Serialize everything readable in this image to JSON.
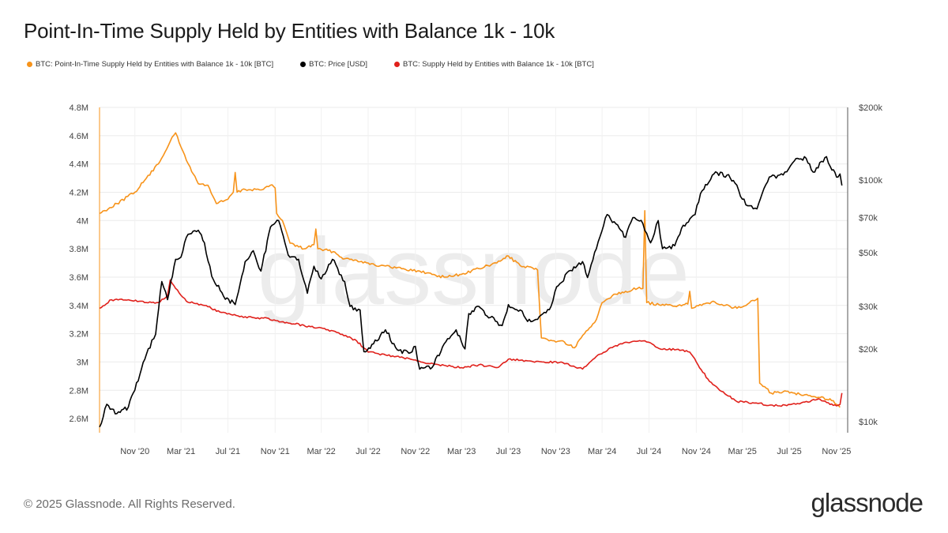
{
  "header": {
    "title": "Point-In-Time Supply Held by Entities with Balance 1k - 10k"
  },
  "footer": {
    "copyright": "© 2025 Glassnode. All Rights Reserved.",
    "brand": "glassnode"
  },
  "watermark": "glassnode",
  "chart_data": {
    "type": "line",
    "title": "Point-In-Time Supply Held by Entities with Balance 1k - 10k",
    "x_range": [
      "2020-08-01",
      "2025-11-30"
    ],
    "x_ticks": [
      {
        "date": "2020-11-01",
        "label": "Nov '20"
      },
      {
        "date": "2021-03-01",
        "label": "Mar '21"
      },
      {
        "date": "2021-07-01",
        "label": "Jul '21"
      },
      {
        "date": "2021-11-01",
        "label": "Nov '21"
      },
      {
        "date": "2022-03-01",
        "label": "Mar '22"
      },
      {
        "date": "2022-07-01",
        "label": "Jul '22"
      },
      {
        "date": "2022-11-01",
        "label": "Nov '22"
      },
      {
        "date": "2023-03-01",
        "label": "Mar '23"
      },
      {
        "date": "2023-07-01",
        "label": "Jul '23"
      },
      {
        "date": "2023-11-01",
        "label": "Nov '23"
      },
      {
        "date": "2024-03-01",
        "label": "Mar '24"
      },
      {
        "date": "2024-07-01",
        "label": "Jul '24"
      },
      {
        "date": "2024-11-01",
        "label": "Nov '24"
      },
      {
        "date": "2025-03-01",
        "label": "Mar '25"
      },
      {
        "date": "2025-07-01",
        "label": "Jul '25"
      },
      {
        "date": "2025-11-01",
        "label": "Nov '25"
      }
    ],
    "y_left": {
      "min": 2500000,
      "max": 4800000,
      "ticks": [
        {
          "value": 2600000,
          "label": "2.6M"
        },
        {
          "value": 2800000,
          "label": "2.8M"
        },
        {
          "value": 3000000,
          "label": "3M"
        },
        {
          "value": 3200000,
          "label": "3.2M"
        },
        {
          "value": 3400000,
          "label": "3.4M"
        },
        {
          "value": 3600000,
          "label": "3.6M"
        },
        {
          "value": 3800000,
          "label": "3.8M"
        },
        {
          "value": 4000000,
          "label": "4M"
        },
        {
          "value": 4200000,
          "label": "4.2M"
        },
        {
          "value": 4400000,
          "label": "4.4M"
        },
        {
          "value": 4600000,
          "label": "4.6M"
        },
        {
          "value": 4800000,
          "label": "4.8M"
        }
      ]
    },
    "y_right": {
      "scale": "log",
      "min": 9000,
      "max": 200000,
      "ticks": [
        {
          "value": 10000,
          "label": "$10k"
        },
        {
          "value": 20000,
          "label": "$20k"
        },
        {
          "value": 30000,
          "label": "$30k"
        },
        {
          "value": 50000,
          "label": "$50k"
        },
        {
          "value": 70000,
          "label": "$70k"
        },
        {
          "value": 100000,
          "label": "$100k"
        },
        {
          "value": 200000,
          "label": "$200k"
        }
      ]
    },
    "grid": true,
    "legend_position": "top-left",
    "series": [
      {
        "name": "BTC: Point-In-Time Supply Held by Entities with Balance 1k - 10k [BTC]",
        "color": "#f7931a",
        "axis": "left",
        "points": [
          [
            "2020-08-01",
            4050000
          ],
          [
            "2020-09-15",
            4120000
          ],
          [
            "2020-11-01",
            4200000
          ],
          [
            "2020-12-01",
            4300000
          ],
          [
            "2021-01-01",
            4400000
          ],
          [
            "2021-02-01",
            4560000
          ],
          [
            "2021-02-15",
            4620000
          ],
          [
            "2021-03-01",
            4520000
          ],
          [
            "2021-03-20",
            4400000
          ],
          [
            "2021-04-15",
            4260000
          ],
          [
            "2021-05-10",
            4250000
          ],
          [
            "2021-06-01",
            4120000
          ],
          [
            "2021-07-01",
            4150000
          ],
          [
            "2021-07-15",
            4200000
          ],
          [
            "2021-07-20",
            4340000
          ],
          [
            "2021-07-25",
            4200000
          ],
          [
            "2021-08-15",
            4220000
          ],
          [
            "2021-10-01",
            4220000
          ],
          [
            "2021-10-20",
            4250000
          ],
          [
            "2021-11-01",
            4230000
          ],
          [
            "2021-11-05",
            4050000
          ],
          [
            "2021-11-20",
            4000000
          ],
          [
            "2021-12-10",
            3840000
          ],
          [
            "2022-01-15",
            3800000
          ],
          [
            "2022-02-10",
            3830000
          ],
          [
            "2022-02-15",
            3940000
          ],
          [
            "2022-02-20",
            3800000
          ],
          [
            "2022-04-01",
            3780000
          ],
          [
            "2022-05-01",
            3730000
          ],
          [
            "2022-06-01",
            3720000
          ],
          [
            "2022-07-01",
            3700000
          ],
          [
            "2022-08-01",
            3680000
          ],
          [
            "2022-10-01",
            3660000
          ],
          [
            "2022-12-01",
            3630000
          ],
          [
            "2023-01-15",
            3600000
          ],
          [
            "2023-03-01",
            3620000
          ],
          [
            "2023-04-15",
            3660000
          ],
          [
            "2023-06-01",
            3700000
          ],
          [
            "2023-07-01",
            3750000
          ],
          [
            "2023-08-01",
            3680000
          ],
          [
            "2023-09-15",
            3650000
          ],
          [
            "2023-09-25",
            3170000
          ],
          [
            "2023-10-15",
            3150000
          ],
          [
            "2023-11-15",
            3150000
          ],
          [
            "2023-12-20",
            3100000
          ],
          [
            "2024-01-15",
            3200000
          ],
          [
            "2024-02-15",
            3300000
          ],
          [
            "2024-03-01",
            3420000
          ],
          [
            "2024-04-01",
            3480000
          ],
          [
            "2024-05-01",
            3500000
          ],
          [
            "2024-06-01",
            3520000
          ],
          [
            "2024-06-15",
            3520000
          ],
          [
            "2024-06-20",
            4070000
          ],
          [
            "2024-06-25",
            3420000
          ],
          [
            "2024-08-01",
            3400000
          ],
          [
            "2024-09-15",
            3400000
          ],
          [
            "2024-10-10",
            3410000
          ],
          [
            "2024-10-15",
            3500000
          ],
          [
            "2024-10-20",
            3380000
          ],
          [
            "2024-11-15",
            3400000
          ],
          [
            "2024-12-15",
            3430000
          ],
          [
            "2025-01-15",
            3400000
          ],
          [
            "2025-02-15",
            3380000
          ],
          [
            "2025-03-15",
            3410000
          ],
          [
            "2025-04-10",
            3450000
          ],
          [
            "2025-04-15",
            2850000
          ],
          [
            "2025-05-15",
            2780000
          ],
          [
            "2025-06-15",
            2790000
          ],
          [
            "2025-07-15",
            2780000
          ],
          [
            "2025-08-15",
            2770000
          ],
          [
            "2025-09-15",
            2750000
          ],
          [
            "2025-10-15",
            2740000
          ],
          [
            "2025-11-01",
            2700000
          ],
          [
            "2025-11-10",
            2680000
          ]
        ]
      },
      {
        "name": "BTC: Price [USD]",
        "color": "#000000",
        "axis": "right",
        "points": [
          [
            "2020-08-01",
            9500
          ],
          [
            "2020-08-20",
            11800
          ],
          [
            "2020-09-15",
            10800
          ],
          [
            "2020-10-15",
            11500
          ],
          [
            "2020-11-01",
            13500
          ],
          [
            "2020-12-01",
            19000
          ],
          [
            "2020-12-25",
            23000
          ],
          [
            "2021-01-10",
            38000
          ],
          [
            "2021-01-25",
            32000
          ],
          [
            "2021-02-15",
            47000
          ],
          [
            "2021-03-01",
            48000
          ],
          [
            "2021-03-15",
            58000
          ],
          [
            "2021-04-15",
            62000
          ],
          [
            "2021-05-01",
            55000
          ],
          [
            "2021-05-20",
            40000
          ],
          [
            "2021-06-20",
            33000
          ],
          [
            "2021-07-20",
            30500
          ],
          [
            "2021-08-15",
            46000
          ],
          [
            "2021-09-05",
            51000
          ],
          [
            "2021-09-25",
            42000
          ],
          [
            "2021-10-20",
            64000
          ],
          [
            "2021-11-10",
            68000
          ],
          [
            "2021-12-05",
            49000
          ],
          [
            "2022-01-01",
            47000
          ],
          [
            "2022-01-24",
            34000
          ],
          [
            "2022-02-10",
            44000
          ],
          [
            "2022-03-01",
            39000
          ],
          [
            "2022-03-30",
            47000
          ],
          [
            "2022-05-01",
            38000
          ],
          [
            "2022-05-15",
            30000
          ],
          [
            "2022-06-10",
            29000
          ],
          [
            "2022-06-20",
            19500
          ],
          [
            "2022-07-15",
            21000
          ],
          [
            "2022-08-15",
            24000
          ],
          [
            "2022-09-15",
            19800
          ],
          [
            "2022-10-15",
            19200
          ],
          [
            "2022-11-01",
            20500
          ],
          [
            "2022-11-12",
            16500
          ],
          [
            "2022-12-15",
            16800
          ],
          [
            "2023-01-15",
            21000
          ],
          [
            "2023-02-15",
            24000
          ],
          [
            "2023-03-10",
            20000
          ],
          [
            "2023-03-20",
            28000
          ],
          [
            "2023-04-15",
            30000
          ],
          [
            "2023-05-15",
            27000
          ],
          [
            "2023-06-15",
            25000
          ],
          [
            "2023-07-01",
            30500
          ],
          [
            "2023-08-01",
            29000
          ],
          [
            "2023-08-20",
            26000
          ],
          [
            "2023-09-15",
            26500
          ],
          [
            "2023-10-20",
            30000
          ],
          [
            "2023-10-30",
            34500
          ],
          [
            "2023-12-05",
            42000
          ],
          [
            "2024-01-10",
            46000
          ],
          [
            "2024-01-23",
            39500
          ],
          [
            "2024-02-15",
            52000
          ],
          [
            "2024-03-14",
            72000
          ],
          [
            "2024-04-15",
            63000
          ],
          [
            "2024-05-01",
            58000
          ],
          [
            "2024-05-20",
            70000
          ],
          [
            "2024-06-15",
            66000
          ],
          [
            "2024-07-05",
            55000
          ],
          [
            "2024-07-25",
            68000
          ],
          [
            "2024-08-05",
            52000
          ],
          [
            "2024-09-06",
            53500
          ],
          [
            "2024-09-28",
            65000
          ],
          [
            "2024-10-29",
            72000
          ],
          [
            "2024-11-12",
            88000
          ],
          [
            "2024-12-17",
            106000
          ],
          [
            "2025-01-20",
            105000
          ],
          [
            "2025-02-10",
            97000
          ],
          [
            "2025-03-10",
            79000
          ],
          [
            "2025-04-08",
            76000
          ],
          [
            "2025-05-10",
            103000
          ],
          [
            "2025-06-15",
            105000
          ],
          [
            "2025-07-14",
            120000
          ],
          [
            "2025-08-14",
            123000
          ],
          [
            "2025-09-01",
            108000
          ],
          [
            "2025-10-06",
            125000
          ],
          [
            "2025-10-20",
            110000
          ],
          [
            "2025-11-05",
            103000
          ],
          [
            "2025-11-10",
            106000
          ],
          [
            "2025-11-15",
            95000
          ]
        ]
      },
      {
        "name": "BTC: Supply Held by Entities with Balance 1k - 10k [BTC]",
        "color": "#e0201b",
        "axis": "left",
        "points": [
          [
            "2020-08-01",
            3380000
          ],
          [
            "2020-09-01",
            3440000
          ],
          [
            "2020-10-15",
            3440000
          ],
          [
            "2020-12-01",
            3420000
          ],
          [
            "2021-01-01",
            3420000
          ],
          [
            "2021-01-25",
            3470000
          ],
          [
            "2021-02-01",
            3580000
          ],
          [
            "2021-02-15",
            3520000
          ],
          [
            "2021-03-15",
            3430000
          ],
          [
            "2021-05-01",
            3400000
          ],
          [
            "2021-06-15",
            3350000
          ],
          [
            "2021-08-01",
            3320000
          ],
          [
            "2021-10-01",
            3310000
          ],
          [
            "2021-12-01",
            3280000
          ],
          [
            "2022-02-01",
            3250000
          ],
          [
            "2022-04-01",
            3220000
          ],
          [
            "2022-06-01",
            3150000
          ],
          [
            "2022-07-01",
            3070000
          ],
          [
            "2022-08-15",
            3050000
          ],
          [
            "2022-10-01",
            3030000
          ],
          [
            "2022-11-15",
            3000000
          ],
          [
            "2023-01-01",
            2980000
          ],
          [
            "2023-03-01",
            2960000
          ],
          [
            "2023-04-15",
            2980000
          ],
          [
            "2023-06-01",
            2960000
          ],
          [
            "2023-07-01",
            3020000
          ],
          [
            "2023-08-15",
            3010000
          ],
          [
            "2023-10-01",
            3000000
          ],
          [
            "2023-11-15",
            3000000
          ],
          [
            "2024-01-10",
            2950000
          ],
          [
            "2024-02-15",
            3040000
          ],
          [
            "2024-04-01",
            3110000
          ],
          [
            "2024-05-01",
            3140000
          ],
          [
            "2024-06-20",
            3150000
          ],
          [
            "2024-08-01",
            3090000
          ],
          [
            "2024-09-15",
            3090000
          ],
          [
            "2024-10-15",
            3070000
          ],
          [
            "2024-11-01",
            3000000
          ],
          [
            "2024-12-01",
            2880000
          ],
          [
            "2025-01-01",
            2800000
          ],
          [
            "2025-02-15",
            2720000
          ],
          [
            "2025-04-01",
            2710000
          ],
          [
            "2025-06-01",
            2690000
          ],
          [
            "2025-08-01",
            2710000
          ],
          [
            "2025-09-15",
            2740000
          ],
          [
            "2025-10-15",
            2700000
          ],
          [
            "2025-11-01",
            2690000
          ],
          [
            "2025-11-10",
            2700000
          ],
          [
            "2025-11-15",
            2780000
          ]
        ]
      }
    ]
  }
}
